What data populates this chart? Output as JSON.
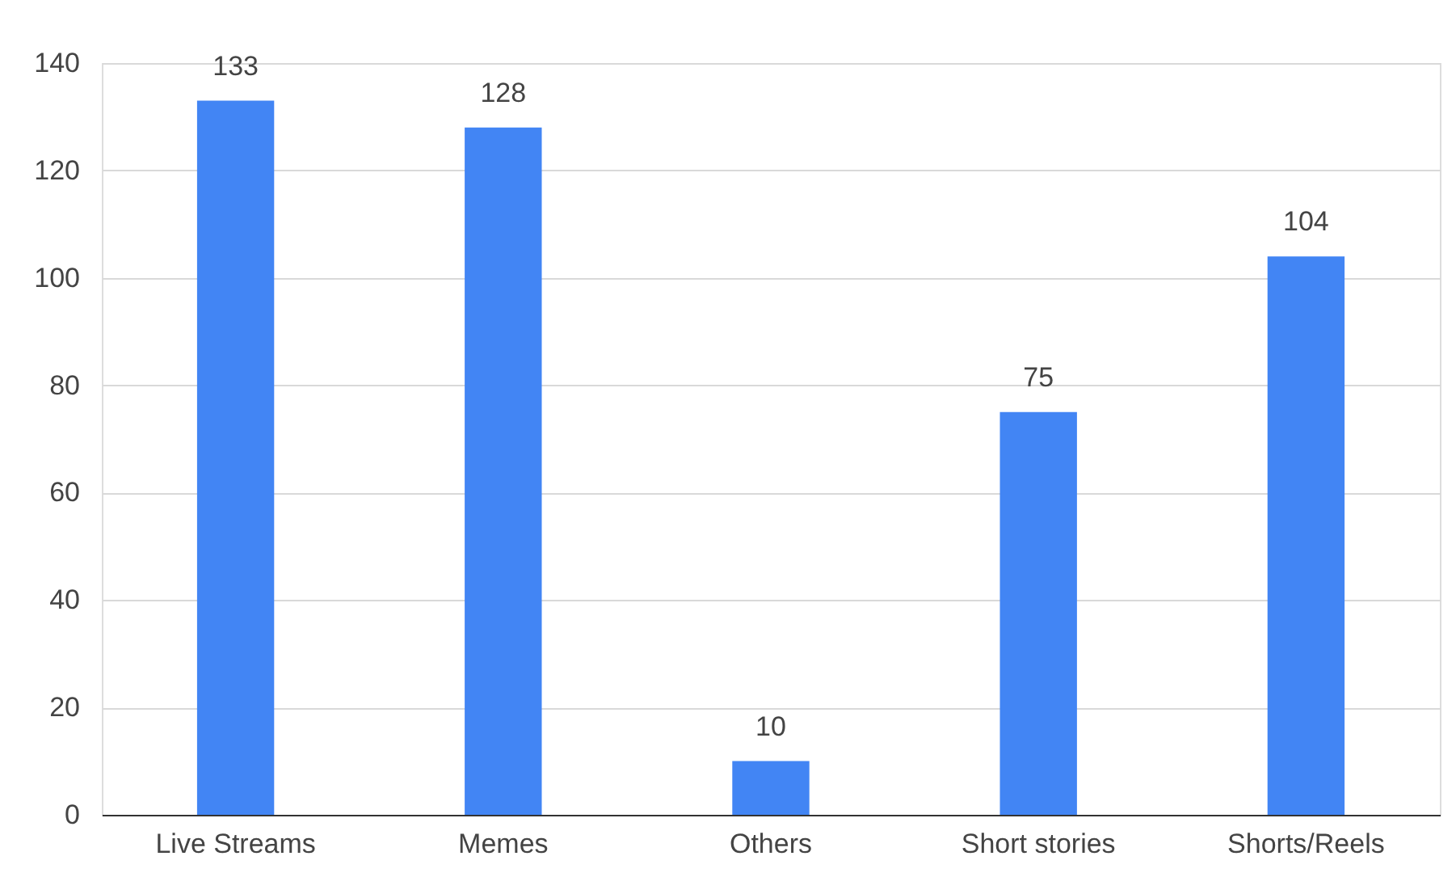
{
  "chart_data": {
    "type": "bar",
    "categories": [
      "Live Streams",
      "Memes",
      "Others",
      "Short stories",
      "Shorts/Reels"
    ],
    "values": [
      133,
      128,
      10,
      75,
      104
    ],
    "color": "#4285f4",
    "ylim": [
      0,
      140
    ],
    "yticks": [
      0,
      20,
      40,
      60,
      80,
      100,
      120,
      140
    ],
    "grid": "y",
    "data_labels": true
  }
}
